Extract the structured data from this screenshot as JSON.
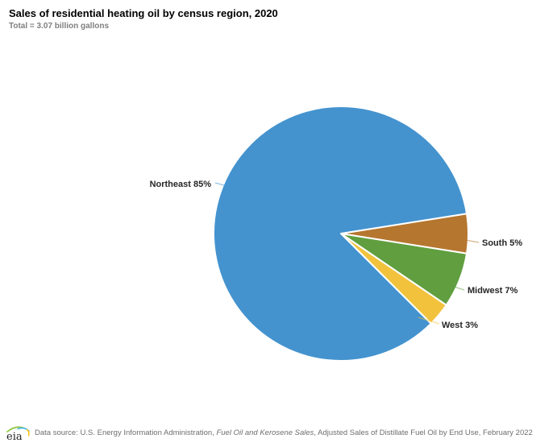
{
  "header": {
    "title": "Sales of residential heating oil by census region, 2020",
    "subtitle": "Total = 3.07 billion gallons"
  },
  "chart_data": {
    "type": "pie",
    "title": "Sales of residential heating oil by census region, 2020",
    "total_label": "Total = 3.07 billion gallons",
    "total_value": 3.07,
    "unit": "billion gallons",
    "start_angle_above_horizontal_deg": 9,
    "direction": "clockwise",
    "legend_position": "outside-labels",
    "slices": [
      {
        "name": "South",
        "percent": 5,
        "label": "South 5%",
        "color": "#b5762f"
      },
      {
        "name": "Midwest",
        "percent": 7,
        "label": "Midwest 7%",
        "color": "#609e3f"
      },
      {
        "name": "West",
        "percent": 3,
        "label": "West 3%",
        "color": "#f2c23d"
      },
      {
        "name": "Northeast",
        "percent": 85,
        "label": "Northeast 85%",
        "color": "#4493cf"
      }
    ]
  },
  "footer": {
    "logo_text": "eia",
    "source_prefix": "Data source: U.S. Energy Information Administration, ",
    "source_italic": "Fuel Oil and Kerosene Sales",
    "source_suffix": ", Adjusted Sales of Distillate Fuel Oil by End Use, February 2022"
  }
}
